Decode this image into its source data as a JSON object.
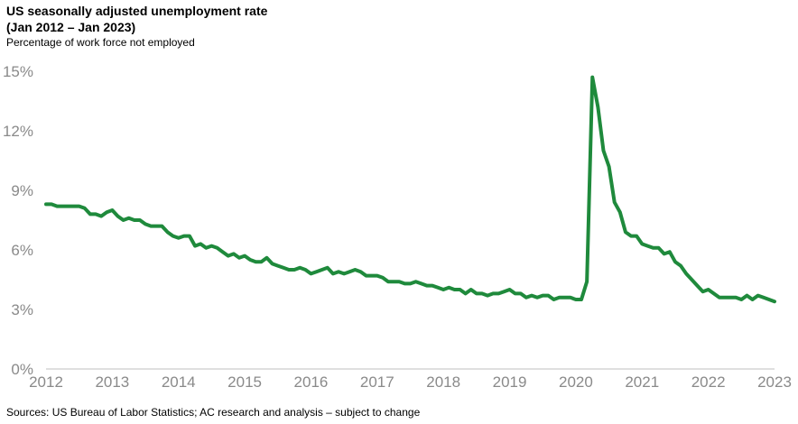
{
  "title_line1": "US seasonally adjusted unemployment rate",
  "title_line2": "(Jan 2012 – Jan 2023)",
  "subtitle": "Percentage of work force not employed",
  "source": "Sources: US Bureau of Labor Statistics; AC research and analysis – subject to change",
  "colors": {
    "line": "#1f8a3c",
    "axis": "#bfbfbf",
    "text": "#8a8a8a"
  },
  "chart_data": {
    "type": "line",
    "title": "US seasonally adjusted unemployment rate (Jan 2012 – Jan 2023)",
    "subtitle": "Percentage of work force not employed",
    "xlabel": "",
    "ylabel": "",
    "xlim": [
      2012,
      2023
    ],
    "ylim": [
      0,
      15
    ],
    "x_ticks": [
      "2012",
      "2013",
      "2014",
      "2015",
      "2016",
      "2017",
      "2018",
      "2019",
      "2020",
      "2021",
      "2022",
      "2023"
    ],
    "y_ticks": [
      "0%",
      "3%",
      "6%",
      "9%",
      "12%",
      "15%"
    ],
    "grid": false,
    "legend": "none",
    "series": [
      {
        "name": "",
        "start": "2012-01",
        "frequency": "monthly",
        "values": [
          8.3,
          8.3,
          8.2,
          8.2,
          8.2,
          8.2,
          8.2,
          8.1,
          7.8,
          7.8,
          7.7,
          7.9,
          8.0,
          7.7,
          7.5,
          7.6,
          7.5,
          7.5,
          7.3,
          7.2,
          7.2,
          7.2,
          6.9,
          6.7,
          6.6,
          6.7,
          6.7,
          6.2,
          6.3,
          6.1,
          6.2,
          6.1,
          5.9,
          5.7,
          5.8,
          5.6,
          5.7,
          5.5,
          5.4,
          5.4,
          5.6,
          5.3,
          5.2,
          5.1,
          5.0,
          5.0,
          5.1,
          5.0,
          4.8,
          4.9,
          5.0,
          5.1,
          4.8,
          4.9,
          4.8,
          4.9,
          5.0,
          4.9,
          4.7,
          4.7,
          4.7,
          4.6,
          4.4,
          4.4,
          4.4,
          4.3,
          4.3,
          4.4,
          4.3,
          4.2,
          4.2,
          4.1,
          4.0,
          4.1,
          4.0,
          4.0,
          3.8,
          4.0,
          3.8,
          3.8,
          3.7,
          3.8,
          3.8,
          3.9,
          4.0,
          3.8,
          3.8,
          3.6,
          3.7,
          3.6,
          3.7,
          3.7,
          3.5,
          3.6,
          3.6,
          3.6,
          3.5,
          3.5,
          4.4,
          14.7,
          13.2,
          11.0,
          10.2,
          8.4,
          7.9,
          6.9,
          6.7,
          6.7,
          6.3,
          6.2,
          6.1,
          6.1,
          5.8,
          5.9,
          5.4,
          5.2,
          4.8,
          4.5,
          4.2,
          3.9,
          4.0,
          3.8,
          3.6,
          3.6,
          3.6,
          3.6,
          3.5,
          3.7,
          3.5,
          3.7,
          3.6,
          3.5,
          3.4
        ]
      }
    ]
  }
}
